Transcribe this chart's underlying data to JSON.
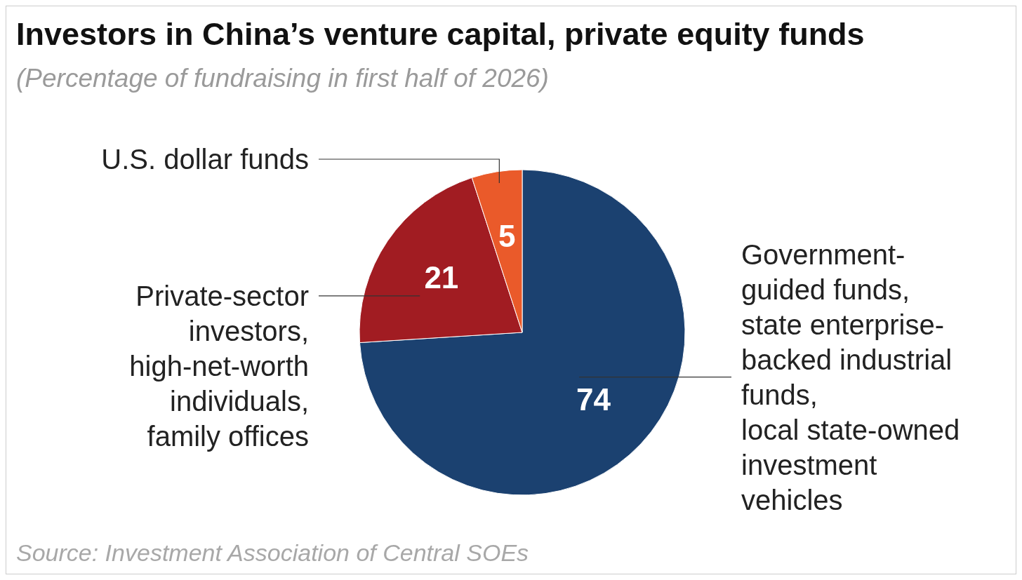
{
  "chart_data": {
    "type": "pie",
    "title": "Investors in China’s venture capital, private equity funds",
    "subtitle": "(Percentage of fundraising in first half of 2026)",
    "categories": [
      "Government-\nguided funds,\nstate enterprise-\nbacked industrial\nfunds,\nlocal state-owned\ninvestment\nvehicles",
      "Private-sector\ninvestors,\nhigh-net-worth\nindividuals,\nfamily offices",
      "U.S. dollar funds"
    ],
    "values": [
      74,
      21,
      5
    ],
    "colors": [
      "#1b4170",
      "#a11c22",
      "#ea5a2a"
    ],
    "data_labels": true,
    "legend": false,
    "annotations": [
      "Source: Investment Association of Central SOEs"
    ]
  }
}
